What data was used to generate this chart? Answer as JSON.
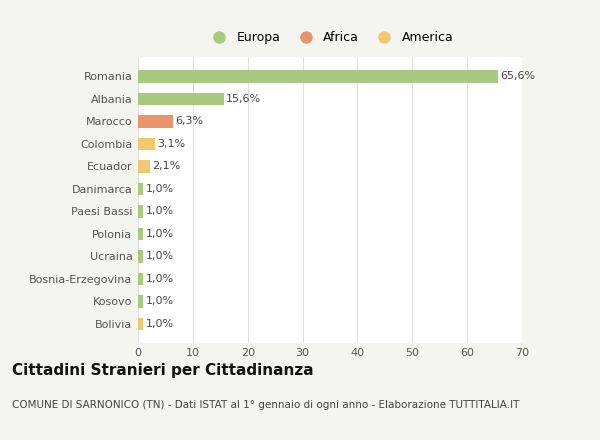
{
  "categories": [
    "Bolivia",
    "Kosovo",
    "Bosnia-Erzegovina",
    "Ucraina",
    "Polonia",
    "Paesi Bassi",
    "Danimarca",
    "Ecuador",
    "Colombia",
    "Marocco",
    "Albania",
    "Romania"
  ],
  "values": [
    1.0,
    1.0,
    1.0,
    1.0,
    1.0,
    1.0,
    1.0,
    2.1,
    3.1,
    6.3,
    15.6,
    65.6
  ],
  "labels": [
    "1,0%",
    "1,0%",
    "1,0%",
    "1,0%",
    "1,0%",
    "1,0%",
    "1,0%",
    "2,1%",
    "3,1%",
    "6,3%",
    "15,6%",
    "65,6%"
  ],
  "colors": [
    "#f2c96e",
    "#a8c97f",
    "#a8c97f",
    "#a8c97f",
    "#a8c97f",
    "#a8c97f",
    "#a8c97f",
    "#f2c96e",
    "#f2c96e",
    "#e8956d",
    "#a8c97f",
    "#a8c97f"
  ],
  "legend_labels": [
    "Europa",
    "Africa",
    "America"
  ],
  "legend_colors": [
    "#a8c97f",
    "#e8956d",
    "#f2c96e"
  ],
  "title": "Cittadini Stranieri per Cittadinanza",
  "subtitle": "COMUNE DI SARNONICO (TN) - Dati ISTAT al 1° gennaio di ogni anno - Elaborazione TUTTITALIA.IT",
  "xlim": [
    0,
    70
  ],
  "xticks": [
    0,
    10,
    20,
    30,
    40,
    50,
    60,
    70
  ],
  "bg_color": "#f5f5ef",
  "plot_bg_color": "#ffffff",
  "grid_color": "#e0e0e0",
  "bar_height": 0.55,
  "title_fontsize": 11,
  "subtitle_fontsize": 7.5,
  "label_fontsize": 8,
  "tick_fontsize": 8,
  "legend_fontsize": 9
}
